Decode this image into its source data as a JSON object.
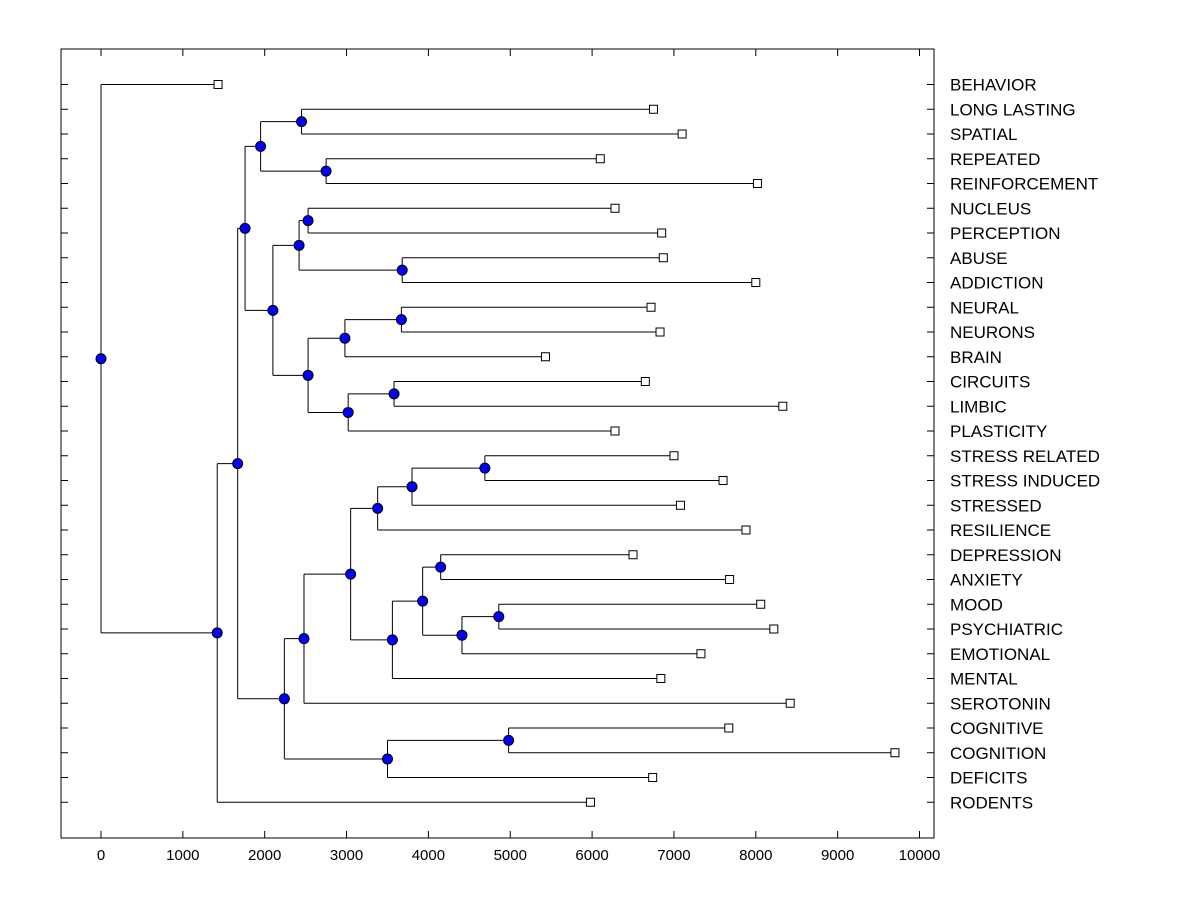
{
  "chart_data": {
    "type": "dendrogram",
    "title": "",
    "xlabel": "",
    "ylabel": "",
    "xlim": [
      -500,
      10000
    ],
    "x_ticks": [
      "0",
      "1000",
      "2000",
      "3000",
      "4000",
      "5000",
      "6000",
      "7000",
      "8000",
      "9000",
      "10000"
    ],
    "grid": false,
    "legend": "none",
    "colors": {
      "node_fill": "#0000ff",
      "node_stroke": "#000000",
      "line": "#000000",
      "leaf_marker_fill": "#ffffff"
    },
    "leaves": [
      {
        "label": "BEHAVIOR",
        "value": 1430
      },
      {
        "label": "LONG LASTING",
        "value": 6750
      },
      {
        "label": "SPATIAL",
        "value": 7100
      },
      {
        "label": "REPEATED",
        "value": 6100
      },
      {
        "label": "REINFORCEMENT",
        "value": 8020
      },
      {
        "label": "NUCLEUS",
        "value": 6280
      },
      {
        "label": "PERCEPTION",
        "value": 6850
      },
      {
        "label": "ABUSE",
        "value": 6870
      },
      {
        "label": "ADDICTION",
        "value": 8000
      },
      {
        "label": "NEURAL",
        "value": 6720
      },
      {
        "label": "NEURONS",
        "value": 6830
      },
      {
        "label": "BRAIN",
        "value": 5430
      },
      {
        "label": "CIRCUITS",
        "value": 6650
      },
      {
        "label": "LIMBIC",
        "value": 8330
      },
      {
        "label": "PLASTICITY",
        "value": 6280
      },
      {
        "label": "STRESS RELATED",
        "value": 7000
      },
      {
        "label": "STRESS INDUCED",
        "value": 7600
      },
      {
        "label": "STRESSED",
        "value": 7080
      },
      {
        "label": "RESILIENCE",
        "value": 7880
      },
      {
        "label": "DEPRESSION",
        "value": 6500
      },
      {
        "label": "ANXIETY",
        "value": 7680
      },
      {
        "label": "MOOD",
        "value": 8060
      },
      {
        "label": "PSYCHIATRIC",
        "value": 8220
      },
      {
        "label": "EMOTIONAL",
        "value": 7330
      },
      {
        "label": "MENTAL",
        "value": 6840
      },
      {
        "label": "SEROTONIN",
        "value": 8420
      },
      {
        "label": "COGNITIVE",
        "value": 7670
      },
      {
        "label": "COGNITION",
        "value": 9700
      },
      {
        "label": "DEFICITS",
        "value": 6740
      },
      {
        "label": "RODENTS",
        "value": 5980
      }
    ],
    "merges": [
      {
        "id": "m1",
        "value": 2450,
        "children": [
          "LONG LASTING",
          "SPATIAL"
        ]
      },
      {
        "id": "m2",
        "value": 2750,
        "children": [
          "REPEATED",
          "REINFORCEMENT"
        ]
      },
      {
        "id": "m3",
        "value": 1950,
        "children": [
          "m1",
          "m2"
        ]
      },
      {
        "id": "m4",
        "value": 2530,
        "children": [
          "NUCLEUS",
          "PERCEPTION"
        ]
      },
      {
        "id": "m5",
        "value": 3680,
        "children": [
          "ABUSE",
          "ADDICTION"
        ]
      },
      {
        "id": "m6",
        "value": 2420,
        "children": [
          "m4",
          "m5"
        ]
      },
      {
        "id": "m7",
        "value": 3670,
        "children": [
          "NEURAL",
          "NEURONS"
        ]
      },
      {
        "id": "m8",
        "value": 2980,
        "children": [
          "m7",
          "BRAIN"
        ]
      },
      {
        "id": "m9",
        "value": 3580,
        "children": [
          "CIRCUITS",
          "LIMBIC"
        ]
      },
      {
        "id": "m10",
        "value": 3020,
        "children": [
          "m9",
          "PLASTICITY"
        ]
      },
      {
        "id": "m11",
        "value": 2530,
        "children": [
          "m8",
          "m10"
        ]
      },
      {
        "id": "m12",
        "value": 2100,
        "children": [
          "m6",
          "m11"
        ]
      },
      {
        "id": "m13",
        "value": 1760,
        "children": [
          "m3",
          "m12"
        ]
      },
      {
        "id": "m14",
        "value": 4690,
        "children": [
          "STRESS RELATED",
          "STRESS INDUCED"
        ]
      },
      {
        "id": "m15",
        "value": 3800,
        "children": [
          "m14",
          "STRESSED"
        ]
      },
      {
        "id": "m16",
        "value": 3380,
        "children": [
          "m15",
          "RESILIENCE"
        ]
      },
      {
        "id": "m17",
        "value": 4150,
        "children": [
          "DEPRESSION",
          "ANXIETY"
        ]
      },
      {
        "id": "m18",
        "value": 4860,
        "children": [
          "MOOD",
          "PSYCHIATRIC"
        ]
      },
      {
        "id": "m19",
        "value": 4410,
        "children": [
          "m18",
          "EMOTIONAL"
        ]
      },
      {
        "id": "m20",
        "value": 3930,
        "children": [
          "m17",
          "m19"
        ]
      },
      {
        "id": "m21",
        "value": 3560,
        "children": [
          "m20",
          "MENTAL"
        ]
      },
      {
        "id": "m22",
        "value": 3050,
        "children": [
          "m16",
          "m21"
        ]
      },
      {
        "id": "m23",
        "value": 2480,
        "children": [
          "m22",
          "SEROTONIN"
        ]
      },
      {
        "id": "m24",
        "value": 4980,
        "children": [
          "COGNITIVE",
          "COGNITION"
        ]
      },
      {
        "id": "m25",
        "value": 3500,
        "children": [
          "m24",
          "DEFICITS"
        ]
      },
      {
        "id": "m26",
        "value": 2240,
        "children": [
          "m23",
          "m25"
        ]
      },
      {
        "id": "m27",
        "value": 1670,
        "children": [
          "m13",
          "m26"
        ]
      },
      {
        "id": "m28",
        "value": 1420,
        "children": [
          "m27",
          "RODENTS"
        ]
      },
      {
        "id": "root",
        "value": 0,
        "children": [
          "BEHAVIOR",
          "m28"
        ]
      }
    ]
  }
}
